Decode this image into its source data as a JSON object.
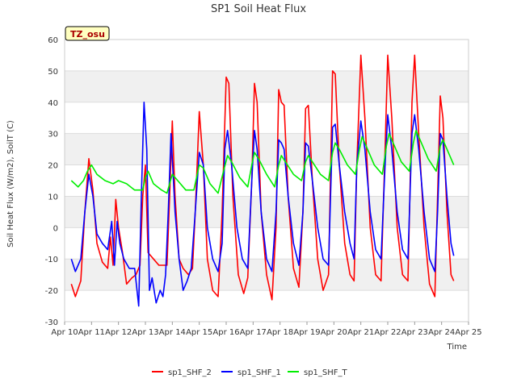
{
  "chart_data": {
    "type": "line",
    "title": "SP1 Soil Heat Flux",
    "xlabel": "Time",
    "ylabel": "Soil Heat Flux (W/m2), SoilT (C)",
    "badge": "TZ_osu",
    "xlim": [
      10,
      25
    ],
    "ylim": [
      -30,
      60
    ],
    "yticks": [
      -30,
      -20,
      -10,
      0,
      10,
      20,
      30,
      40,
      50,
      60
    ],
    "xticks": [
      {
        "v": 10,
        "label": "Apr 10"
      },
      {
        "v": 11,
        "label": "Apr 11"
      },
      {
        "v": 12,
        "label": "Apr 12"
      },
      {
        "v": 13,
        "label": "Apr 13"
      },
      {
        "v": 14,
        "label": "Apr 14"
      },
      {
        "v": 15,
        "label": "Apr 15"
      },
      {
        "v": 16,
        "label": "Apr 16"
      },
      {
        "v": 17,
        "label": "Apr 17"
      },
      {
        "v": 18,
        "label": "Apr 18"
      },
      {
        "v": 19,
        "label": "Apr 19"
      },
      {
        "v": 20,
        "label": "Apr 20"
      },
      {
        "v": 21,
        "label": "Apr 21"
      },
      {
        "v": 22,
        "label": "Apr 22"
      },
      {
        "v": 23,
        "label": "Apr 23"
      },
      {
        "v": 24,
        "label": "Apr 24"
      },
      {
        "v": 25,
        "label": "Apr 25"
      }
    ],
    "grid": true,
    "legend_position": "bottom",
    "series": [
      {
        "name": "sp1_SHF_2",
        "color": "#ff0000",
        "points": [
          [
            10.25,
            -18
          ],
          [
            10.4,
            -22
          ],
          [
            10.6,
            -17
          ],
          [
            10.75,
            5
          ],
          [
            10.9,
            22
          ],
          [
            11.05,
            12
          ],
          [
            11.2,
            -5
          ],
          [
            11.4,
            -11
          ],
          [
            11.6,
            -13
          ],
          [
            11.7,
            -3
          ],
          [
            11.8,
            -12
          ],
          [
            11.9,
            9
          ],
          [
            12.0,
            0
          ],
          [
            12.15,
            -8
          ],
          [
            12.3,
            -18
          ],
          [
            12.5,
            -16
          ],
          [
            12.65,
            -15
          ],
          [
            12.8,
            -12
          ],
          [
            12.9,
            10
          ],
          [
            13.0,
            20
          ],
          [
            13.1,
            -8
          ],
          [
            13.3,
            -10
          ],
          [
            13.5,
            -12
          ],
          [
            13.65,
            -12
          ],
          [
            13.8,
            -12
          ],
          [
            13.9,
            10
          ],
          [
            14.0,
            34
          ],
          [
            14.1,
            10
          ],
          [
            14.25,
            -10
          ],
          [
            14.4,
            -13
          ],
          [
            14.6,
            -15
          ],
          [
            14.75,
            -13
          ],
          [
            14.85,
            5
          ],
          [
            15.0,
            37
          ],
          [
            15.15,
            20
          ],
          [
            15.3,
            -10
          ],
          [
            15.5,
            -20
          ],
          [
            15.7,
            -22
          ],
          [
            15.85,
            5
          ],
          [
            16.0,
            48
          ],
          [
            16.1,
            46
          ],
          [
            16.25,
            10
          ],
          [
            16.45,
            -15
          ],
          [
            16.65,
            -21
          ],
          [
            16.8,
            -16
          ],
          [
            16.95,
            15
          ],
          [
            17.05,
            46
          ],
          [
            17.15,
            40
          ],
          [
            17.3,
            5
          ],
          [
            17.5,
            -15
          ],
          [
            17.7,
            -23
          ],
          [
            17.85,
            0
          ],
          [
            17.95,
            44
          ],
          [
            18.05,
            40
          ],
          [
            18.15,
            39
          ],
          [
            18.3,
            10
          ],
          [
            18.5,
            -13
          ],
          [
            18.7,
            -19
          ],
          [
            18.85,
            5
          ],
          [
            18.95,
            38
          ],
          [
            19.05,
            39
          ],
          [
            19.2,
            15
          ],
          [
            19.4,
            -10
          ],
          [
            19.6,
            -20
          ],
          [
            19.8,
            -15
          ],
          [
            19.95,
            50
          ],
          [
            20.05,
            49
          ],
          [
            20.2,
            20
          ],
          [
            20.4,
            -5
          ],
          [
            20.6,
            -15
          ],
          [
            20.75,
            -17
          ],
          [
            20.85,
            20
          ],
          [
            21.0,
            55
          ],
          [
            21.15,
            35
          ],
          [
            21.35,
            0
          ],
          [
            21.55,
            -15
          ],
          [
            21.75,
            -17
          ],
          [
            21.9,
            25
          ],
          [
            22.0,
            55
          ],
          [
            22.15,
            35
          ],
          [
            22.35,
            0
          ],
          [
            22.55,
            -15
          ],
          [
            22.75,
            -17
          ],
          [
            22.9,
            40
          ],
          [
            23.0,
            55
          ],
          [
            23.15,
            30
          ],
          [
            23.35,
            0
          ],
          [
            23.55,
            -18
          ],
          [
            23.75,
            -22
          ],
          [
            23.85,
            10
          ],
          [
            23.95,
            42
          ],
          [
            24.05,
            35
          ],
          [
            24.2,
            5
          ],
          [
            24.35,
            -15
          ],
          [
            24.45,
            -17
          ]
        ]
      },
      {
        "name": "sp1_SHF_1",
        "color": "#0000ff",
        "points": [
          [
            10.25,
            -10
          ],
          [
            10.4,
            -14
          ],
          [
            10.6,
            -10
          ],
          [
            10.75,
            5
          ],
          [
            10.9,
            17
          ],
          [
            11.05,
            10
          ],
          [
            11.2,
            -2
          ],
          [
            11.4,
            -5
          ],
          [
            11.6,
            -7
          ],
          [
            11.75,
            2
          ],
          [
            11.85,
            -12
          ],
          [
            11.95,
            2
          ],
          [
            12.05,
            -5
          ],
          [
            12.2,
            -10
          ],
          [
            12.4,
            -13
          ],
          [
            12.6,
            -13
          ],
          [
            12.75,
            -25
          ],
          [
            12.85,
            10
          ],
          [
            12.95,
            40
          ],
          [
            13.05,
            25
          ],
          [
            13.15,
            -20
          ],
          [
            13.25,
            -16
          ],
          [
            13.4,
            -24
          ],
          [
            13.55,
            -20
          ],
          [
            13.65,
            -22
          ],
          [
            13.75,
            -15
          ],
          [
            13.85,
            5
          ],
          [
            13.95,
            30
          ],
          [
            14.1,
            5
          ],
          [
            14.25,
            -10
          ],
          [
            14.4,
            -20
          ],
          [
            14.55,
            -17
          ],
          [
            14.7,
            -13
          ],
          [
            14.85,
            5
          ],
          [
            15.0,
            24
          ],
          [
            15.15,
            20
          ],
          [
            15.3,
            0
          ],
          [
            15.5,
            -10
          ],
          [
            15.7,
            -14
          ],
          [
            15.85,
            -5
          ],
          [
            15.95,
            25
          ],
          [
            16.05,
            31
          ],
          [
            16.2,
            20
          ],
          [
            16.4,
            0
          ],
          [
            16.6,
            -10
          ],
          [
            16.8,
            -13
          ],
          [
            16.95,
            15
          ],
          [
            17.05,
            31
          ],
          [
            17.15,
            25
          ],
          [
            17.3,
            5
          ],
          [
            17.5,
            -10
          ],
          [
            17.7,
            -14
          ],
          [
            17.85,
            5
          ],
          [
            17.95,
            28
          ],
          [
            18.05,
            27
          ],
          [
            18.15,
            25
          ],
          [
            18.3,
            10
          ],
          [
            18.5,
            -5
          ],
          [
            18.7,
            -12
          ],
          [
            18.85,
            5
          ],
          [
            18.95,
            27
          ],
          [
            19.05,
            26
          ],
          [
            19.2,
            15
          ],
          [
            19.4,
            0
          ],
          [
            19.6,
            -10
          ],
          [
            19.8,
            -12
          ],
          [
            19.95,
            32
          ],
          [
            20.05,
            33
          ],
          [
            20.2,
            20
          ],
          [
            20.4,
            5
          ],
          [
            20.6,
            -5
          ],
          [
            20.75,
            -10
          ],
          [
            20.85,
            20
          ],
          [
            21.0,
            34
          ],
          [
            21.15,
            25
          ],
          [
            21.35,
            5
          ],
          [
            21.55,
            -7
          ],
          [
            21.75,
            -10
          ],
          [
            21.9,
            20
          ],
          [
            22.0,
            36
          ],
          [
            22.15,
            25
          ],
          [
            22.35,
            5
          ],
          [
            22.55,
            -7
          ],
          [
            22.75,
            -10
          ],
          [
            22.9,
            30
          ],
          [
            23.0,
            36
          ],
          [
            23.15,
            25
          ],
          [
            23.35,
            5
          ],
          [
            23.55,
            -10
          ],
          [
            23.75,
            -14
          ],
          [
            23.85,
            5
          ],
          [
            23.95,
            30
          ],
          [
            24.05,
            28
          ],
          [
            24.2,
            10
          ],
          [
            24.35,
            -5
          ],
          [
            24.45,
            -9
          ]
        ]
      },
      {
        "name": "sp1_SHF_T",
        "color": "#00ee00",
        "points": [
          [
            10.25,
            15
          ],
          [
            10.5,
            13
          ],
          [
            10.7,
            15
          ],
          [
            10.85,
            18
          ],
          [
            11.0,
            20
          ],
          [
            11.2,
            17
          ],
          [
            11.5,
            15
          ],
          [
            11.8,
            14
          ],
          [
            12.0,
            15
          ],
          [
            12.3,
            14
          ],
          [
            12.6,
            12
          ],
          [
            12.9,
            12
          ],
          [
            13.0,
            16
          ],
          [
            13.1,
            18
          ],
          [
            13.3,
            14
          ],
          [
            13.6,
            12
          ],
          [
            13.8,
            11
          ],
          [
            14.0,
            17
          ],
          [
            14.2,
            15
          ],
          [
            14.5,
            12
          ],
          [
            14.8,
            12
          ],
          [
            15.0,
            20
          ],
          [
            15.15,
            19
          ],
          [
            15.4,
            14
          ],
          [
            15.7,
            11
          ],
          [
            15.9,
            18
          ],
          [
            16.05,
            23
          ],
          [
            16.2,
            21
          ],
          [
            16.5,
            16
          ],
          [
            16.8,
            13
          ],
          [
            16.95,
            20
          ],
          [
            17.05,
            24
          ],
          [
            17.2,
            22
          ],
          [
            17.5,
            17
          ],
          [
            17.8,
            13
          ],
          [
            17.95,
            20
          ],
          [
            18.05,
            23
          ],
          [
            18.2,
            21
          ],
          [
            18.5,
            17
          ],
          [
            18.8,
            15
          ],
          [
            18.95,
            21
          ],
          [
            19.05,
            23
          ],
          [
            19.2,
            21
          ],
          [
            19.5,
            17
          ],
          [
            19.8,
            15
          ],
          [
            19.95,
            24
          ],
          [
            20.05,
            27
          ],
          [
            20.2,
            25
          ],
          [
            20.5,
            20
          ],
          [
            20.8,
            17
          ],
          [
            20.95,
            25
          ],
          [
            21.05,
            29
          ],
          [
            21.2,
            26
          ],
          [
            21.5,
            20
          ],
          [
            21.8,
            17
          ],
          [
            21.95,
            26
          ],
          [
            22.05,
            30
          ],
          [
            22.2,
            27
          ],
          [
            22.5,
            21
          ],
          [
            22.8,
            18
          ],
          [
            22.95,
            27
          ],
          [
            23.05,
            31
          ],
          [
            23.2,
            28
          ],
          [
            23.5,
            22
          ],
          [
            23.8,
            18
          ],
          [
            23.95,
            26
          ],
          [
            24.05,
            28
          ],
          [
            24.2,
            25
          ],
          [
            24.45,
            20
          ]
        ]
      }
    ]
  }
}
